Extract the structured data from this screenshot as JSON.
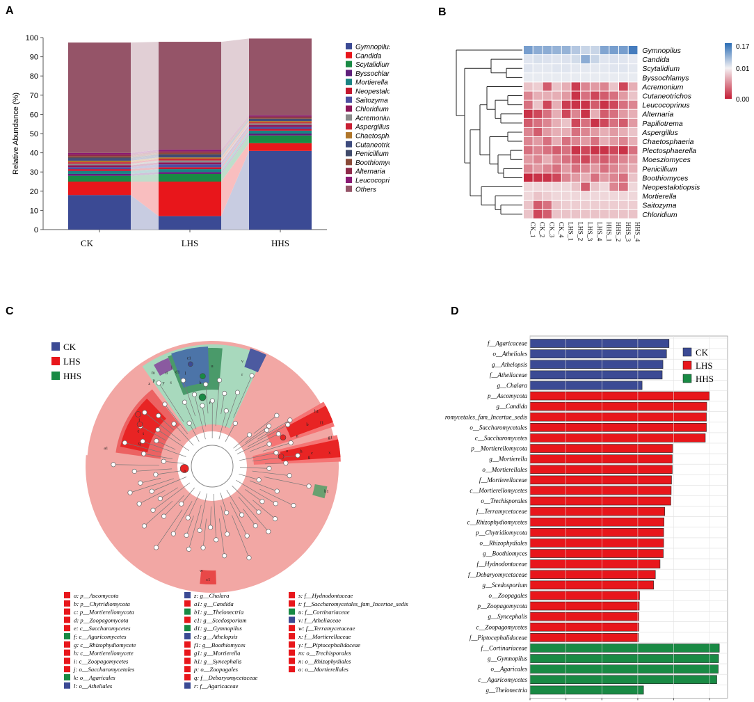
{
  "colors": {
    "Gymnopilus": "#3b4a94",
    "Candida": "#e8161b",
    "Scytalidium": "#198a44",
    "Byssochlamys": "#5e1f7a",
    "Mortierella": "#1b8383",
    "Neopestalotiopsis": "#c4172e",
    "Saitozyma": "#4c4fa0",
    "Chloridium": "#8e1658",
    "Acremonium": "#8a8a8a",
    "Aspergillus": "#c92034",
    "Chaetosphaeria": "#b0762a",
    "Cutaneotrichosporon": "#3c4a7d",
    "Penicillium": "#404a6a",
    "Boothiomyces": "#8a4a38",
    "Alternaria": "#8e2a4a",
    "Leucocoprinus": "#8a1a74",
    "Others": "#955468",
    "CK": "#3b4a94",
    "LHS": "#e8161b",
    "HHS": "#198a44"
  },
  "panels": {
    "A": {
      "letter": "A"
    },
    "B": {
      "letter": "B"
    },
    "C": {
      "letter": "C"
    },
    "D": {
      "letter": "D"
    }
  },
  "chart_data": [
    {
      "type": "bar",
      "subtype": "stacked-100",
      "ylabel": "Relative Abundance (%)",
      "ylim": [
        0,
        100
      ],
      "yticks": [
        0,
        10,
        20,
        30,
        40,
        50,
        60,
        70,
        80,
        90,
        100
      ],
      "categories": [
        "CK",
        "LHS",
        "HHS"
      ],
      "legend": [
        "Gymnopilus",
        "Candida",
        "Scytalidium",
        "Byssochlamys",
        "Mortierella",
        "Neopestalotiopsis",
        "Saitozyma",
        "Chloridium",
        "Acremonium",
        "Aspergillus",
        "Chaetosphaeria",
        "Cutaneotrichosporon",
        "Penicillium",
        "Boothiomyces",
        "Alternaria",
        "Leucocoprinus",
        "Others"
      ],
      "series": [
        {
          "name": "Gymnopilus",
          "values": [
            18,
            7,
            41
          ]
        },
        {
          "name": "Candida",
          "values": [
            7,
            18,
            4
          ]
        },
        {
          "name": "Scytalidium",
          "values": [
            3,
            4,
            4
          ]
        },
        {
          "name": "Byssochlamys",
          "values": [
            1,
            1,
            1
          ]
        },
        {
          "name": "Mortierella",
          "values": [
            1.5,
            1.5,
            1.5
          ]
        },
        {
          "name": "Neopestalotiopsis",
          "values": [
            1,
            1,
            1
          ]
        },
        {
          "name": "Saitozyma",
          "values": [
            1,
            1.5,
            1
          ]
        },
        {
          "name": "Chloridium",
          "values": [
            1,
            1,
            1
          ]
        },
        {
          "name": "Acremonium",
          "values": [
            0.8,
            1,
            0.8
          ]
        },
        {
          "name": "Aspergillus",
          "values": [
            0.8,
            0.8,
            0.6
          ]
        },
        {
          "name": "Chaetosphaeria",
          "values": [
            0.8,
            0.8,
            0.6
          ]
        },
        {
          "name": "Cutaneotrichosporon",
          "values": [
            0.8,
            0.8,
            0.6
          ]
        },
        {
          "name": "Penicillium",
          "values": [
            0.8,
            0.8,
            0.6
          ]
        },
        {
          "name": "Boothiomyces",
          "values": [
            0.8,
            0.8,
            0.6
          ]
        },
        {
          "name": "Alternaria",
          "values": [
            0.8,
            0.8,
            0.6
          ]
        },
        {
          "name": "Leucocoprinus",
          "values": [
            0.8,
            0.8,
            0.6
          ]
        },
        {
          "name": "Others",
          "values": [
            57.5,
            56.2,
            40
          ]
        }
      ]
    },
    {
      "type": "heatmap",
      "scale_labels": [
        "0.17",
        "0.01",
        "0.00"
      ],
      "rows": [
        "Gymnopilus",
        "Candida",
        "Scytalidium",
        "Byssochlamys",
        "Acremonium",
        "Cutaneotrichos",
        "Leucocoprinus",
        "Alternaria",
        "Papiliotrema",
        "Aspergillus",
        "Chaetosphaeria",
        "Plectosphaerella",
        "Moesziomyces",
        "Penicillium",
        "Boothiomyces",
        "Neopestalotiopsis",
        "Mortierella",
        "Saitozyma",
        "Chloridium"
      ],
      "columns": [
        "CK_1",
        "CK_2",
        "CK_3",
        "CK_4",
        "LHS_1",
        "LHS_2",
        "LHS_3",
        "LHS_4",
        "HHS_1",
        "HHS_2",
        "HHS_3",
        "HHS_4"
      ],
      "values": [
        [
          0.6,
          0.5,
          0.5,
          0.45,
          0.45,
          0.3,
          0.2,
          0.2,
          0.55,
          0.6,
          0.6,
          0.85
        ],
        [
          0.08,
          0.12,
          0.1,
          0.08,
          0.1,
          0.15,
          0.5,
          0.2,
          0.08,
          0.1,
          0.08,
          0.05
        ],
        [
          0.08,
          0.06,
          0.06,
          0.08,
          0.08,
          0.06,
          0.06,
          0.06,
          0.06,
          0.08,
          0.08,
          0.06
        ],
        [
          0.04,
          0.04,
          0.04,
          0.04,
          0.04,
          0.04,
          0.04,
          0.04,
          0.04,
          0.04,
          0.04,
          0.04
        ],
        [
          -0.2,
          -0.15,
          -0.7,
          -0.2,
          -0.3,
          -0.85,
          -0.5,
          -0.4,
          -0.5,
          -0.2,
          -0.8,
          -0.3
        ],
        [
          -0.5,
          -0.3,
          -0.3,
          -0.3,
          -0.4,
          -0.9,
          -0.6,
          -0.8,
          -0.7,
          -0.6,
          -0.4,
          -0.2
        ],
        [
          -0.6,
          -0.2,
          -0.8,
          -0.3,
          -0.85,
          -0.9,
          -0.9,
          -0.7,
          -0.9,
          -0.8,
          -0.6,
          -0.5
        ],
        [
          -0.9,
          -0.8,
          -0.6,
          -0.3,
          -0.8,
          -0.5,
          -0.9,
          -0.3,
          -0.7,
          -0.6,
          -0.4,
          -0.3
        ],
        [
          -0.7,
          -0.6,
          -0.5,
          -0.3,
          -0.2,
          -0.8,
          -0.6,
          -0.9,
          -0.8,
          -0.6,
          -0.7,
          -0.4
        ],
        [
          -0.5,
          -0.7,
          -0.4,
          -0.3,
          -0.3,
          -0.6,
          -0.5,
          -0.4,
          -0.3,
          -0.4,
          -0.3,
          -0.2
        ],
        [
          -0.5,
          -0.4,
          -0.6,
          -0.3,
          -0.6,
          -0.5,
          -0.4,
          -0.6,
          -0.3,
          -0.4,
          -0.5,
          -0.3
        ],
        [
          -0.6,
          -0.5,
          -0.6,
          -0.7,
          -0.6,
          -0.9,
          -0.8,
          -0.9,
          -0.9,
          -0.8,
          -0.9,
          -0.6
        ],
        [
          -0.4,
          -0.5,
          -0.3,
          -0.5,
          -0.6,
          -0.7,
          -0.8,
          -0.6,
          -0.7,
          -0.6,
          -0.5,
          -0.4
        ],
        [
          -0.5,
          -0.4,
          -0.5,
          -0.6,
          -0.4,
          -0.6,
          -0.5,
          -0.4,
          -0.6,
          -0.5,
          -0.4,
          -0.3
        ],
        [
          -0.95,
          -0.9,
          -0.9,
          -0.8,
          -0.5,
          -0.4,
          -0.3,
          -0.6,
          -0.4,
          -0.5,
          -0.6,
          -0.2
        ],
        [
          -0.1,
          -0.1,
          -0.1,
          -0.1,
          -0.1,
          -0.2,
          -0.7,
          -0.2,
          -0.1,
          -0.5,
          -0.6,
          -0.1
        ],
        [
          -0.1,
          -0.2,
          -0.15,
          -0.1,
          -0.1,
          -0.1,
          -0.1,
          -0.1,
          -0.1,
          -0.1,
          -0.1,
          -0.1
        ],
        [
          -0.2,
          -0.7,
          -0.6,
          -0.2,
          -0.15,
          -0.15,
          -0.15,
          -0.15,
          -0.15,
          -0.15,
          -0.15,
          -0.15
        ],
        [
          -0.2,
          -0.8,
          -0.7,
          -0.2,
          -0.2,
          -0.2,
          -0.2,
          -0.2,
          -0.2,
          -0.2,
          -0.2,
          -0.2
        ]
      ]
    },
    {
      "type": "other",
      "subtype": "cladogram",
      "legend_groups": [
        "CK",
        "LHS",
        "HHS"
      ],
      "node_labels": [
        "a",
        "b",
        "c",
        "d",
        "e",
        "f",
        "g",
        "h",
        "i",
        "j",
        "k",
        "l",
        "m",
        "n",
        "o",
        "p",
        "q",
        "r",
        "s",
        "t",
        "u",
        "v",
        "w",
        "x",
        "y",
        "z",
        "a1",
        "b1",
        "c1",
        "d1",
        "e1",
        "f1",
        "g1",
        "h1"
      ],
      "key": [
        {
          "text": "a: p__Ascomycota",
          "group": "LHS"
        },
        {
          "text": "b: p__Chytridiomycota",
          "group": "LHS"
        },
        {
          "text": "c: p__Mortierellomycota",
          "group": "LHS"
        },
        {
          "text": "d: p__Zoopagomycota",
          "group": "LHS"
        },
        {
          "text": "e: c__Saccharomycetes",
          "group": "LHS"
        },
        {
          "text": "f: c__Agaricomycetes",
          "group": "HHS"
        },
        {
          "text": "g: c__Rhizophydiomycete",
          "group": "LHS"
        },
        {
          "text": "h: c__Mortierellomycete",
          "group": "LHS"
        },
        {
          "text": "i: c__Zoopagomycetes",
          "group": "LHS"
        },
        {
          "text": "j: o__Saccharomycetales",
          "group": "LHS"
        },
        {
          "text": "k: o__Agaricales",
          "group": "HHS"
        },
        {
          "text": "l: o__Atheliales",
          "group": "CK"
        },
        {
          "text": "z: g__Chalara",
          "group": "CK"
        },
        {
          "text": "a1: g__Candida",
          "group": "LHS"
        },
        {
          "text": "b1: g__Thelonectria",
          "group": "HHS"
        },
        {
          "text": "c1: g__Scedosporium",
          "group": "LHS"
        },
        {
          "text": "d1: g__Gymnopilus",
          "group": "HHS"
        },
        {
          "text": "e1: g__Athelopsis",
          "group": "CK"
        },
        {
          "text": "f1: g__Boothiomyces",
          "group": "LHS"
        },
        {
          "text": "g1: g__Mortierella",
          "group": "LHS"
        },
        {
          "text": "h1: g__Syncephalis",
          "group": "LHS"
        },
        {
          "text": "p: o__Zoopagales",
          "group": "LHS"
        },
        {
          "text": "q: f__Debaryomycetaceae",
          "group": "LHS"
        },
        {
          "text": "r: f__Agaricaceae",
          "group": "CK"
        },
        {
          "text": "s: f__Hydnodontaceae",
          "group": "LHS"
        },
        {
          "text": "t: f__Saccharomycetales_fam_Incertae_sedis",
          "group": "LHS"
        },
        {
          "text": "u: f__Cortinariaceae",
          "group": "HHS"
        },
        {
          "text": "v: f__Atheliaceae",
          "group": "CK"
        },
        {
          "text": "w: f__Terramycetaceae",
          "group": "LHS"
        },
        {
          "text": "x: f__Mortierellaceae",
          "group": "LHS"
        },
        {
          "text": "y: f__Piptocephalidaceae",
          "group": "LHS"
        },
        {
          "text": "m: o__Trechisporales",
          "group": "LHS"
        },
        {
          "text": "n: o__Rhizophydiales",
          "group": "LHS"
        },
        {
          "text": "o: o__Mortierellales",
          "group": "LHS"
        }
      ]
    },
    {
      "type": "bar",
      "orientation": "horizontal",
      "xlim": [
        0,
        5.5
      ],
      "xticks": [
        0,
        1,
        2,
        3,
        4,
        5
      ],
      "legend": [
        "CK",
        "LHS",
        "HHS"
      ],
      "categories": [
        "f__Agaricaceae",
        "o__Atheliales",
        "g__Athelopsis",
        "f__Atheliaceae",
        "g__Chalara",
        "p__Ascomycota",
        "g__Candida",
        "f__Saccharomycetales_fam_Incertae_sedis",
        "o__Saccharomycetales",
        "c__Saccharomycetes",
        "p__Mortierellomycota",
        "g__Mortierella",
        "o__Mortierellales",
        "f__Mortierellaceae",
        "c__Mortierellomycetes",
        "o__Trechisporales",
        "f__Terramycetaceae",
        "c__Rhizophydiomycetes",
        "p__Chytridiomycota",
        "o__Rhizophydiales",
        "g__Boothiomyces",
        "f__Hydnodontaceae",
        "f__Debaryomycetaceae",
        "g__Scedosporium",
        "o__Zoopagales",
        "p__Zoopagomycota",
        "g__Syncephalis",
        "c__Zoopagomycetes",
        "f__Piptocephalidaceae",
        "f__Cortinariaceae",
        "g__Gymnopilus",
        "o__Agaricales",
        "c__Agaricomycetes",
        "g__Thelonectria"
      ],
      "groups": [
        "CK",
        "CK",
        "CK",
        "CK",
        "CK",
        "LHS",
        "LHS",
        "LHS",
        "LHS",
        "LHS",
        "LHS",
        "LHS",
        "LHS",
        "LHS",
        "LHS",
        "LHS",
        "LHS",
        "LHS",
        "LHS",
        "LHS",
        "LHS",
        "LHS",
        "LHS",
        "LHS",
        "LHS",
        "LHS",
        "LHS",
        "LHS",
        "LHS",
        "HHS",
        "HHS",
        "HHS",
        "HHS",
        "HHS"
      ],
      "values": [
        3.87,
        3.8,
        3.7,
        3.68,
        3.12,
        4.99,
        4.92,
        4.91,
        4.91,
        4.88,
        3.97,
        3.96,
        3.96,
        3.94,
        3.93,
        3.92,
        3.75,
        3.73,
        3.72,
        3.72,
        3.71,
        3.62,
        3.49,
        3.44,
        3.05,
        3.04,
        3.03,
        3.03,
        3.02,
        5.27,
        5.25,
        5.24,
        5.2,
        3.16
      ]
    }
  ]
}
